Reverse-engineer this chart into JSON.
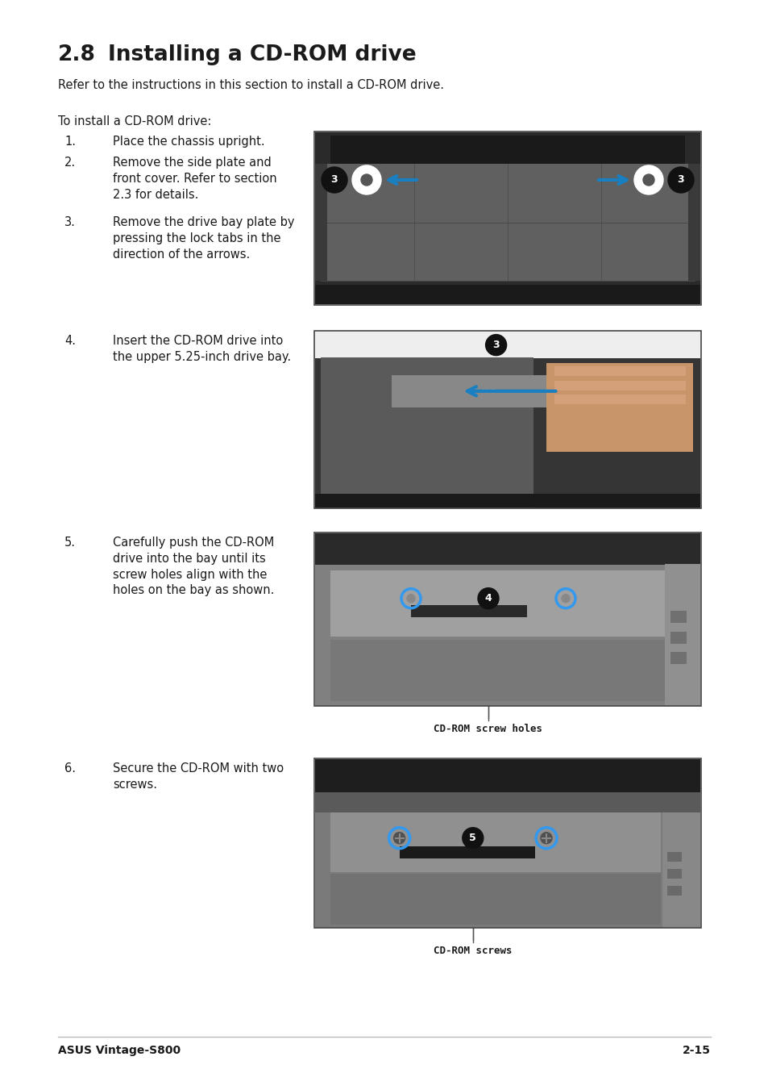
{
  "page_bg": "#ffffff",
  "title_prefix": "2.8",
  "title_main": "Installing a CD-ROM drive",
  "subtitle": "Refer to the instructions in this section to install a CD-ROM drive.",
  "intro": "To install a CD-ROM drive:",
  "steps": [
    {
      "num": "1.",
      "text": "Place the chassis upright."
    },
    {
      "num": "2.",
      "text": "Remove the side plate and\nfront cover. Refer to section\n2.3 for details."
    },
    {
      "num": "3.",
      "text": "Remove the drive bay plate by\npressing the lock tabs in the\ndirection of the arrows."
    },
    {
      "num": "4.",
      "text": "Insert the CD-ROM drive into\nthe upper 5.25-inch drive bay."
    },
    {
      "num": "5.",
      "text": "Carefully push the CD-ROM\ndrive into the bay until its\nscrew holes align with the\nholes on the bay as shown."
    },
    {
      "num": "6.",
      "text": "Secure the CD-ROM with two\nscrews."
    }
  ],
  "caption3": "CD-ROM screw holes",
  "caption4": "CD-ROM screws",
  "footer_left": "ASUS Vintage-S800",
  "footer_right": "2-15",
  "text_color": "#1a1a1a",
  "line_color": "#bbbbbb",
  "blue_arrow": "#1a7fc1"
}
